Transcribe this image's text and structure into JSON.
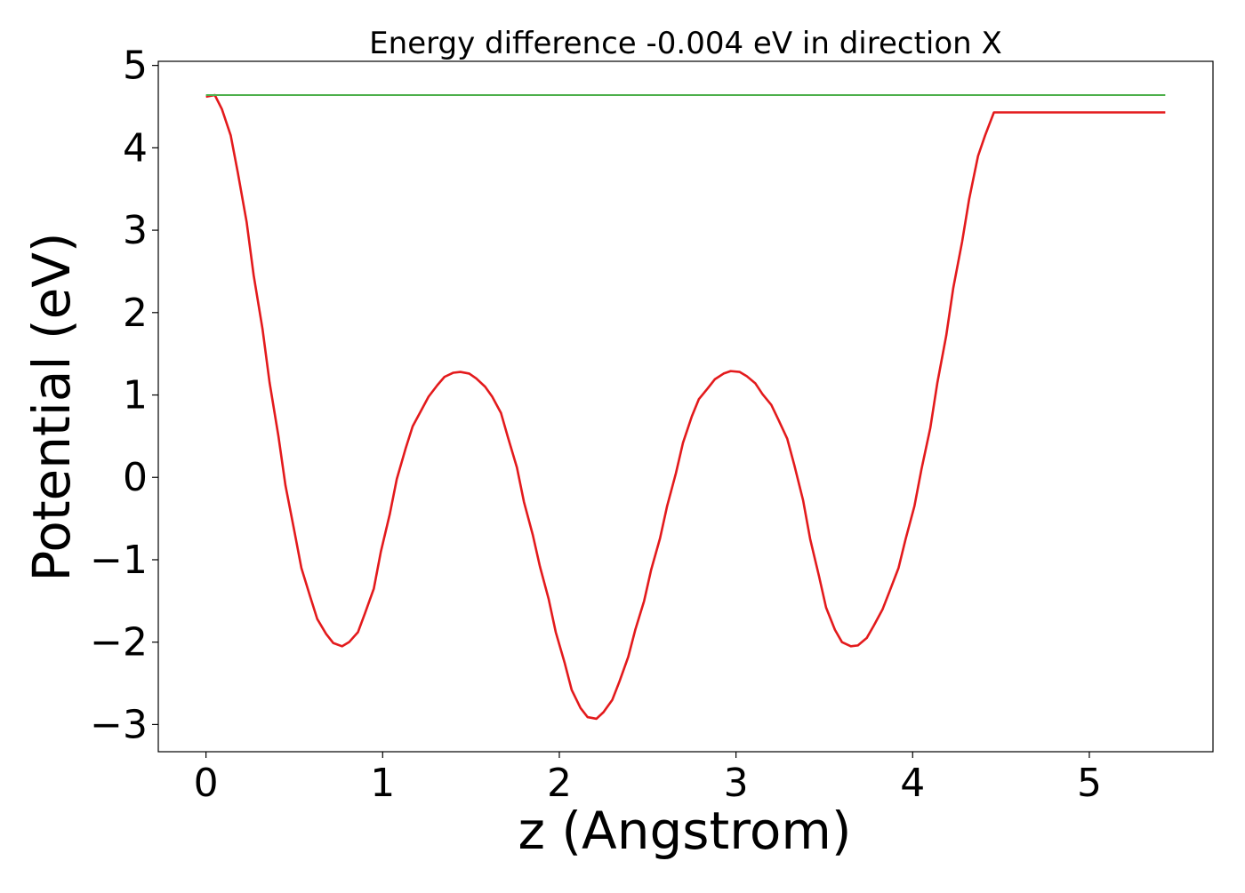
{
  "chart_data": {
    "type": "line",
    "title": "Energy difference -0.004 eV in direction X",
    "xlabel": "z (Angstrom)",
    "ylabel": "Potential (eV)",
    "xlim": [
      -0.27,
      5.7
    ],
    "ylim": [
      -3.33,
      5.05
    ],
    "xticks": [
      0,
      1,
      2,
      3,
      4,
      5
    ],
    "xtick_labels": [
      "0",
      "1",
      "2",
      "3",
      "4",
      "5"
    ],
    "yticks": [
      -3,
      -2,
      -1,
      0,
      1,
      2,
      3,
      4,
      5
    ],
    "ytick_labels": [
      "−3",
      "−2",
      "−1",
      "0",
      "1",
      "2",
      "3",
      "4",
      "5"
    ],
    "grid": false,
    "legend": "none",
    "series": [
      {
        "color": "#e31a1c",
        "x": [
          0.0,
          0.05,
          0.09,
          0.14,
          0.18,
          0.23,
          0.27,
          0.32,
          0.36,
          0.41,
          0.45,
          0.5,
          0.54,
          0.59,
          0.63,
          0.68,
          0.72,
          0.77,
          0.81,
          0.86,
          0.9,
          0.95,
          0.99,
          1.04,
          1.08,
          1.13,
          1.17,
          1.22,
          1.26,
          1.31,
          1.35,
          1.4,
          1.44,
          1.49,
          1.53,
          1.58,
          1.62,
          1.67,
          1.71,
          1.76,
          1.8,
          1.85,
          1.89,
          1.94,
          1.98,
          2.03,
          2.07,
          2.12,
          2.16,
          2.21,
          2.25,
          2.3,
          2.34,
          2.39,
          2.43,
          2.48,
          2.52,
          2.57,
          2.61,
          2.66,
          2.7,
          2.75,
          2.79,
          2.84,
          2.88,
          2.93,
          2.97,
          3.02,
          3.06,
          3.11,
          3.15,
          3.2,
          3.24,
          3.29,
          3.33,
          3.38,
          3.42,
          3.47,
          3.51,
          3.56,
          3.6,
          3.65,
          3.69,
          3.74,
          3.78,
          3.83,
          3.87,
          3.92,
          3.96,
          4.01,
          4.05,
          4.1,
          4.14,
          4.19,
          4.23,
          4.28,
          4.32,
          4.37,
          4.41,
          4.46,
          4.5,
          4.55,
          4.59,
          4.64,
          4.68,
          4.73,
          4.77,
          4.82,
          4.86,
          4.91,
          4.95,
          5.0,
          5.04,
          5.09,
          5.13,
          5.18,
          5.22,
          5.27,
          5.31,
          5.36,
          5.4,
          5.43
        ],
        "y": [
          4.62,
          4.64,
          4.47,
          4.15,
          3.7,
          3.1,
          2.45,
          1.8,
          1.15,
          0.5,
          -0.1,
          -0.65,
          -1.1,
          -1.45,
          -1.72,
          -1.9,
          -2.01,
          -2.05,
          -2.0,
          -1.88,
          -1.65,
          -1.35,
          -0.9,
          -0.45,
          -0.02,
          0.35,
          0.62,
          0.82,
          0.98,
          1.12,
          1.22,
          1.27,
          1.28,
          1.26,
          1.2,
          1.1,
          0.98,
          0.78,
          0.48,
          0.12,
          -0.3,
          -0.7,
          -1.08,
          -1.48,
          -1.88,
          -2.25,
          -2.58,
          -2.8,
          -2.91,
          -2.93,
          -2.85,
          -2.7,
          -2.48,
          -2.18,
          -1.85,
          -1.5,
          -1.12,
          -0.74,
          -0.35,
          0.05,
          0.42,
          0.74,
          0.95,
          1.08,
          1.19,
          1.26,
          1.29,
          1.28,
          1.23,
          1.14,
          1.01,
          0.88,
          0.7,
          0.47,
          0.15,
          -0.28,
          -0.75,
          -1.2,
          -1.58,
          -1.85,
          -2.0,
          -2.05,
          -2.04,
          -1.95,
          -1.8,
          -1.6,
          -1.38,
          -1.1,
          -0.75,
          -0.35,
          0.1,
          0.6,
          1.15,
          1.72,
          2.3,
          2.86,
          3.38,
          3.9,
          4.15,
          4.43,
          4.43,
          4.43,
          4.43,
          4.43,
          4.43,
          4.43,
          4.43,
          4.43,
          4.43,
          4.43,
          4.43,
          4.43,
          4.43,
          4.43,
          4.43,
          4.43,
          4.43,
          4.43,
          4.43,
          4.43,
          4.43,
          4.43
        ]
      },
      {
        "color": "#4daf4a",
        "x": [
          0.0,
          5.43
        ],
        "y": [
          4.64,
          4.64
        ]
      }
    ]
  }
}
